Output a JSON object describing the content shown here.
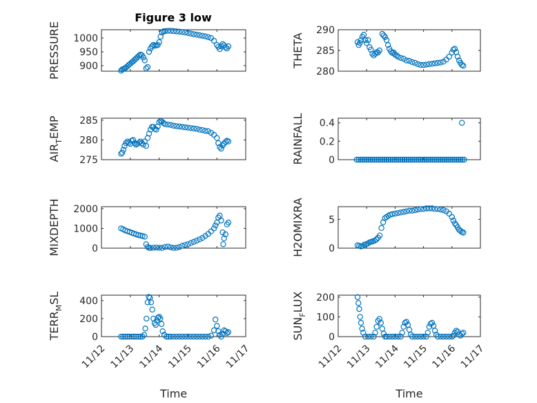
{
  "figure": {
    "title": "Figure 3 low"
  },
  "chart_data": [
    {
      "type": "scatter",
      "title": "Figure 3 low",
      "ylabel": "PRESSURE",
      "xlabel": "",
      "xlim": [
        "11/12",
        "11/17"
      ],
      "ylim": [
        880,
        1030
      ],
      "yticks": [
        900,
        950,
        1000
      ],
      "xticklabels": [],
      "grid": true,
      "series": [
        {
          "x": [
            12.68,
            12.72,
            12.76,
            12.8,
            12.85,
            12.9,
            12.95,
            13.0,
            13.05,
            13.1,
            13.15,
            13.2,
            13.25,
            13.3,
            13.35,
            13.4,
            13.45,
            13.5,
            13.55,
            13.6,
            13.65,
            13.7,
            13.75,
            13.8,
            13.85,
            13.9,
            13.95,
            14.0,
            14.05,
            14.1,
            14.15,
            14.2,
            14.3,
            14.4,
            14.5,
            14.6,
            14.7,
            14.8,
            14.9,
            15.0,
            15.1,
            15.2,
            15.3,
            15.4,
            15.5,
            15.6,
            15.7,
            15.8,
            15.9,
            16.0,
            16.05,
            16.1,
            16.15,
            16.2,
            16.25,
            16.3,
            16.35,
            16.4
          ],
          "y": [
            882,
            886,
            888,
            890,
            893,
            898,
            903,
            907,
            912,
            916,
            921,
            926,
            931,
            936,
            940,
            938,
            930,
            919,
            890,
            895,
            950,
            962,
            970,
            975,
            972,
            973,
            975,
            985,
            1005,
            1020,
            1024,
            1025,
            1026,
            1026,
            1025,
            1024,
            1023,
            1022,
            1020,
            1018,
            1016,
            1014,
            1012,
            1010,
            1008,
            1006,
            1003,
            1000,
            990,
            975,
            968,
            960,
            970,
            978,
            974,
            966,
            962,
            970
          ]
        }
      ]
    },
    {
      "type": "scatter",
      "ylabel": "THETA",
      "xlabel": "",
      "xlim": [
        "11/12",
        "11/17"
      ],
      "ylim": [
        280,
        290
      ],
      "yticks": [
        280,
        285,
        290
      ],
      "xticklabels": [],
      "grid": true,
      "series": [
        {
          "x": [
            12.68,
            12.72,
            12.76,
            12.8,
            12.85,
            12.9,
            12.95,
            13.0,
            13.05,
            13.1,
            13.15,
            13.2,
            13.25,
            13.3,
            13.35,
            13.4,
            13.45,
            13.55,
            13.6,
            13.65,
            13.7,
            13.75,
            13.8,
            13.85,
            13.9,
            13.95,
            14.0,
            14.05,
            14.1,
            14.2,
            14.3,
            14.4,
            14.5,
            14.6,
            14.7,
            14.8,
            14.9,
            15.0,
            15.1,
            15.2,
            15.3,
            15.4,
            15.5,
            15.6,
            15.7,
            15.8,
            15.9,
            16.0,
            16.05,
            16.1,
            16.15,
            16.2,
            16.25,
            16.3,
            16.35,
            16.4
          ],
          "y": [
            287,
            286.3,
            286.8,
            287.5,
            288.3,
            288.8,
            287.5,
            286.8,
            287.5,
            285.8,
            285.2,
            284.2,
            283.8,
            284.2,
            284.6,
            284.5,
            285,
            289,
            288.6,
            288.2,
            287.5,
            286.3,
            285.4,
            284.8,
            284.4,
            284.5,
            284,
            283.8,
            283.5,
            283.2,
            283,
            282.6,
            282.5,
            282.2,
            282,
            281.7,
            281.5,
            281.5,
            281.6,
            281.7,
            281.8,
            281.9,
            282,
            282.1,
            282.3,
            282.8,
            283.5,
            284.5,
            285.2,
            285.4,
            284.6,
            283.5,
            282.6,
            282,
            281.5,
            281.3
          ]
        }
      ]
    },
    {
      "type": "scatter",
      "ylabel": "AIR_TEMP",
      "xlabel": "",
      "xlim": [
        "11/12",
        "11/17"
      ],
      "ylim": [
        275,
        285.5
      ],
      "yticks": [
        275,
        280,
        285
      ],
      "xticklabels": [],
      "grid": true,
      "series": [
        {
          "x": [
            12.68,
            12.72,
            12.76,
            12.8,
            12.85,
            12.9,
            12.95,
            13.0,
            13.05,
            13.1,
            13.15,
            13.2,
            13.25,
            13.3,
            13.35,
            13.4,
            13.45,
            13.5,
            13.55,
            13.6,
            13.65,
            13.7,
            13.75,
            13.8,
            13.85,
            13.9,
            13.95,
            14.0,
            14.05,
            14.1,
            14.15,
            14.2,
            14.3,
            14.4,
            14.5,
            14.6,
            14.7,
            14.8,
            14.9,
            15.0,
            15.1,
            15.2,
            15.3,
            15.4,
            15.5,
            15.6,
            15.7,
            15.8,
            15.9,
            16.0,
            16.05,
            16.1,
            16.15,
            16.2,
            16.25,
            16.3,
            16.35,
            16.4
          ],
          "y": [
            276.5,
            276.8,
            277.5,
            278.5,
            279.2,
            279.6,
            279.3,
            279,
            279.8,
            280,
            279.2,
            278.8,
            279,
            279.3,
            279.6,
            279.2,
            278.8,
            279.6,
            278.5,
            280.5,
            281.6,
            282.6,
            283.3,
            283.3,
            282.8,
            282.6,
            283.4,
            284.5,
            284.8,
            284.6,
            284.3,
            284,
            283.9,
            283.8,
            283.6,
            283.5,
            283.4,
            283.3,
            283.2,
            283.1,
            283,
            282.9,
            282.8,
            282.6,
            282.5,
            282.3,
            282.2,
            281.8,
            281.3,
            280.5,
            279.2,
            278.2,
            277.8,
            278.6,
            279.1,
            279.5,
            279.8,
            279.6
          ]
        }
      ]
    },
    {
      "type": "scatter",
      "ylabel": "RAINFALL",
      "xlabel": "",
      "xlim": [
        "11/12",
        "11/17"
      ],
      "ylim": [
        0,
        0.45
      ],
      "yticks": [
        0,
        0.2,
        0.4
      ],
      "yticklabels": [
        "0",
        "0.2",
        "0.4"
      ],
      "xticklabels": [],
      "grid": true,
      "series": [
        {
          "x": [
            12.65,
            12.72,
            12.79,
            12.86,
            12.93,
            13.0,
            13.07,
            13.14,
            13.21,
            13.28,
            13.35,
            13.42,
            13.49,
            13.56,
            13.63,
            13.7,
            13.77,
            13.84,
            13.91,
            13.98,
            14.05,
            14.12,
            14.19,
            14.26,
            14.33,
            14.4,
            14.47,
            14.54,
            14.61,
            14.68,
            14.75,
            14.82,
            14.89,
            14.96,
            15.03,
            15.1,
            15.17,
            15.24,
            15.31,
            15.38,
            15.45,
            15.52,
            15.59,
            15.66,
            15.73,
            15.8,
            15.87,
            15.94,
            16.01,
            16.08,
            16.15,
            16.22,
            16.29,
            16.36,
            16.43,
            16.35
          ],
          "y": [
            0,
            0,
            0,
            0,
            0,
            0,
            0,
            0,
            0,
            0,
            0,
            0,
            0,
            0,
            0,
            0,
            0,
            0,
            0,
            0,
            0,
            0,
            0,
            0,
            0,
            0,
            0,
            0,
            0,
            0,
            0,
            0,
            0,
            0,
            0,
            0,
            0,
            0,
            0,
            0,
            0,
            0,
            0,
            0,
            0,
            0,
            0,
            0,
            0,
            0,
            0,
            0,
            0,
            0,
            0,
            0.4
          ]
        }
      ]
    },
    {
      "type": "scatter",
      "ylabel": "MIXDEPTH",
      "xlabel": "",
      "xlim": [
        "11/12",
        "11/17"
      ],
      "ylim": [
        0,
        2100
      ],
      "yticks": [
        0,
        1000,
        2000
      ],
      "xticklabels": [],
      "grid": true,
      "series": [
        {
          "x": [
            12.68,
            12.75,
            12.82,
            12.9,
            12.98,
            13.05,
            13.12,
            13.2,
            13.28,
            13.35,
            13.42,
            13.5,
            13.55,
            13.6,
            13.65,
            13.7,
            13.8,
            13.9,
            14.0,
            14.1,
            14.2,
            14.3,
            14.4,
            14.5,
            14.6,
            14.7,
            14.8,
            14.9,
            15.0,
            15.1,
            15.2,
            15.3,
            15.4,
            15.5,
            15.6,
            15.7,
            15.8,
            15.9,
            15.95,
            16.0,
            16.05,
            16.1,
            16.15,
            16.2,
            16.22,
            16.25,
            16.3,
            16.35,
            16.4
          ],
          "y": [
            1000,
            960,
            900,
            860,
            820,
            780,
            740,
            700,
            660,
            640,
            620,
            580,
            200,
            60,
            20,
            10,
            20,
            30,
            20,
            10,
            60,
            80,
            40,
            10,
            20,
            60,
            120,
            160,
            200,
            260,
            320,
            380,
            450,
            520,
            620,
            720,
            850,
            1000,
            1150,
            1300,
            1550,
            1650,
            1400,
            800,
            200,
            500,
            700,
            1200,
            1300
          ]
        }
      ]
    },
    {
      "type": "scatter",
      "ylabel": "H2OMIXRA",
      "xlabel": "",
      "xlim": [
        "11/12",
        "11/17"
      ],
      "ylim": [
        0,
        7.2
      ],
      "yticks": [
        0,
        5
      ],
      "xticklabels": [],
      "grid": true,
      "series": [
        {
          "x": [
            12.68,
            12.74,
            12.8,
            12.86,
            12.92,
            12.98,
            13.04,
            13.1,
            13.16,
            13.22,
            13.28,
            13.34,
            13.4,
            13.46,
            13.52,
            13.58,
            13.64,
            13.7,
            13.76,
            13.82,
            13.9,
            14.0,
            14.1,
            14.2,
            14.3,
            14.4,
            14.5,
            14.6,
            14.7,
            14.8,
            14.9,
            15.0,
            15.1,
            15.2,
            15.3,
            15.4,
            15.5,
            15.6,
            15.7,
            15.8,
            15.9,
            16.0,
            16.05,
            16.1,
            16.15,
            16.2,
            16.25,
            16.3,
            16.35,
            16.4
          ],
          "y": [
            0.5,
            0.4,
            0.3,
            0.4,
            0.6,
            0.7,
            0.8,
            1.0,
            1.1,
            1.2,
            1.3,
            1.5,
            1.8,
            2.2,
            3.5,
            4.5,
            5.2,
            5.4,
            5.6,
            5.8,
            5.9,
            6.0,
            6.1,
            6.2,
            6.3,
            6.4,
            6.5,
            6.5,
            6.6,
            6.7,
            6.8,
            6.8,
            6.9,
            6.9,
            6.9,
            6.8,
            6.8,
            6.7,
            6.6,
            6.4,
            6.0,
            5.4,
            4.8,
            4.3,
            4.0,
            3.6,
            3.2,
            3.0,
            2.8,
            2.7
          ]
        }
      ]
    },
    {
      "type": "scatter",
      "ylabel": "TERR_MSL",
      "xlabel": "Time",
      "xlim": [
        "11/12",
        "11/17"
      ],
      "ylim": [
        0,
        460
      ],
      "yticks": [
        0,
        200,
        400
      ],
      "xticklabels": [
        "11/12",
        "11/13",
        "11/14",
        "11/15",
        "11/16",
        "11/17"
      ],
      "grid": true,
      "series": [
        {
          "x": [
            12.68,
            12.75,
            12.82,
            12.9,
            12.98,
            13.05,
            13.12,
            13.2,
            13.28,
            13.35,
            13.42,
            13.48,
            13.52,
            13.56,
            13.6,
            13.64,
            13.68,
            13.72,
            13.76,
            13.8,
            13.84,
            13.88,
            13.92,
            13.96,
            14.0,
            14.04,
            14.08,
            14.12,
            14.18,
            14.25,
            14.32,
            14.4,
            14.5,
            14.6,
            14.7,
            14.8,
            14.9,
            15.0,
            15.1,
            15.2,
            15.3,
            15.4,
            15.5,
            15.6,
            15.7,
            15.8,
            15.9,
            15.95,
            16.0,
            16.05,
            16.1,
            16.15,
            16.2,
            16.25,
            16.3,
            16.35,
            16.4
          ],
          "y": [
            0,
            0,
            0,
            0,
            0,
            0,
            0,
            0,
            0,
            0,
            0,
            20,
            90,
            200,
            380,
            440,
            430,
            380,
            300,
            200,
            150,
            130,
            180,
            210,
            220,
            200,
            140,
            60,
            20,
            0,
            0,
            0,
            0,
            0,
            0,
            0,
            0,
            0,
            0,
            0,
            0,
            0,
            0,
            0,
            0,
            10,
            70,
            190,
            120,
            60,
            20,
            0,
            30,
            70,
            60,
            40,
            50
          ]
        }
      ]
    },
    {
      "type": "scatter",
      "ylabel": "SUN_FLUX",
      "xlabel": "Time",
      "xlim": [
        "11/12",
        "11/17"
      ],
      "ylim": [
        0,
        210
      ],
      "yticks": [
        0,
        100,
        200
      ],
      "xticklabels": [
        "11/12",
        "11/13",
        "11/14",
        "11/15",
        "11/16",
        "11/17"
      ],
      "grid": true,
      "series": [
        {
          "x": [
            12.68,
            12.71,
            12.74,
            12.77,
            12.8,
            12.84,
            12.88,
            12.95,
            13.05,
            13.15,
            13.25,
            13.3,
            13.35,
            13.4,
            13.45,
            13.5,
            13.55,
            13.6,
            13.65,
            13.7,
            13.8,
            13.9,
            14.0,
            14.1,
            14.2,
            14.25,
            14.3,
            14.35,
            14.4,
            14.45,
            14.5,
            14.55,
            14.6,
            14.7,
            14.8,
            14.9,
            15.0,
            15.1,
            15.15,
            15.2,
            15.25,
            15.3,
            15.35,
            15.4,
            15.45,
            15.5,
            15.6,
            15.7,
            15.8,
            15.9,
            16.0,
            16.05,
            16.1,
            16.15,
            16.2,
            16.25,
            16.3,
            16.35,
            16.4
          ],
          "y": [
            200,
            170,
            140,
            100,
            70,
            40,
            20,
            0,
            0,
            0,
            0,
            20,
            50,
            80,
            90,
            70,
            40,
            15,
            0,
            0,
            0,
            0,
            0,
            0,
            0,
            20,
            50,
            70,
            75,
            60,
            35,
            10,
            0,
            0,
            0,
            0,
            0,
            0,
            20,
            50,
            65,
            70,
            55,
            30,
            10,
            0,
            0,
            0,
            0,
            0,
            0,
            5,
            20,
            30,
            25,
            10,
            5,
            15,
            20
          ]
        }
      ]
    }
  ]
}
